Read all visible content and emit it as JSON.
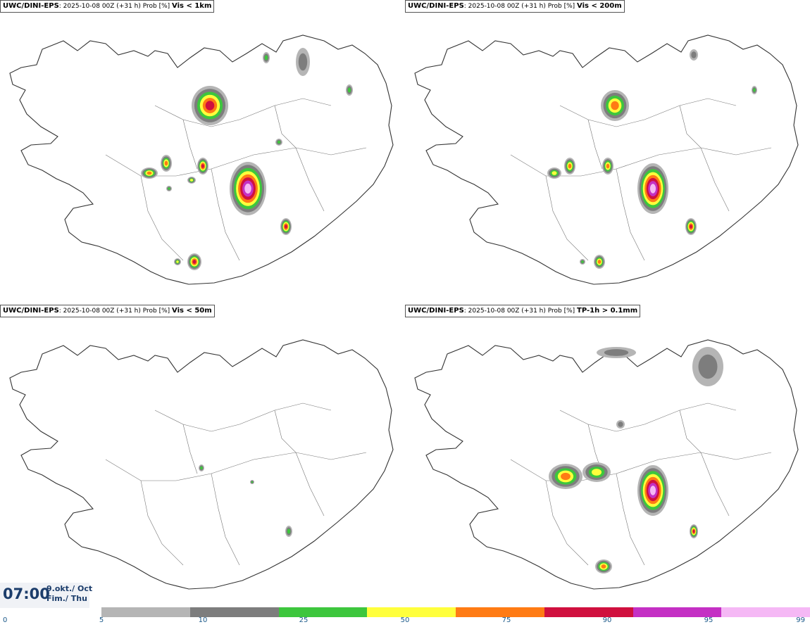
{
  "panels": [
    {
      "model": "UWC/DINI-EPS",
      "run": ": 2025-10-08 00Z (+31 h) Prob [%]",
      "param": "Vis < 1km"
    },
    {
      "model": "UWC/DINI-EPS",
      "run": ": 2025-10-08 00Z (+31 h) Prob [%]",
      "param": "Vis < 200m"
    },
    {
      "model": "UWC/DINI-EPS",
      "run": ": 2025-10-08 00Z (+31 h) Prob [%]",
      "param": "Vis < 50m"
    },
    {
      "model": "UWC/DINI-EPS",
      "run": ": 2025-10-08 00Z (+31 h) Prob [%]",
      "param": "TP-1h > 0.1mm"
    }
  ],
  "valid_time": {
    "time": "07:00",
    "date_line1": "9.okt./ Oct",
    "date_line2": "Fim./ Thu"
  },
  "legend": {
    "ticks": [
      "0",
      "5",
      "10",
      "25",
      "50",
      "75",
      "90",
      "95",
      "99"
    ],
    "colors": [
      "#b5b5b5",
      "#7d7d7d",
      "#3dc63d",
      "#ffff3c",
      "#ff7b14",
      "#d0103e",
      "#c430c4",
      "#f5b8f5"
    ]
  }
}
